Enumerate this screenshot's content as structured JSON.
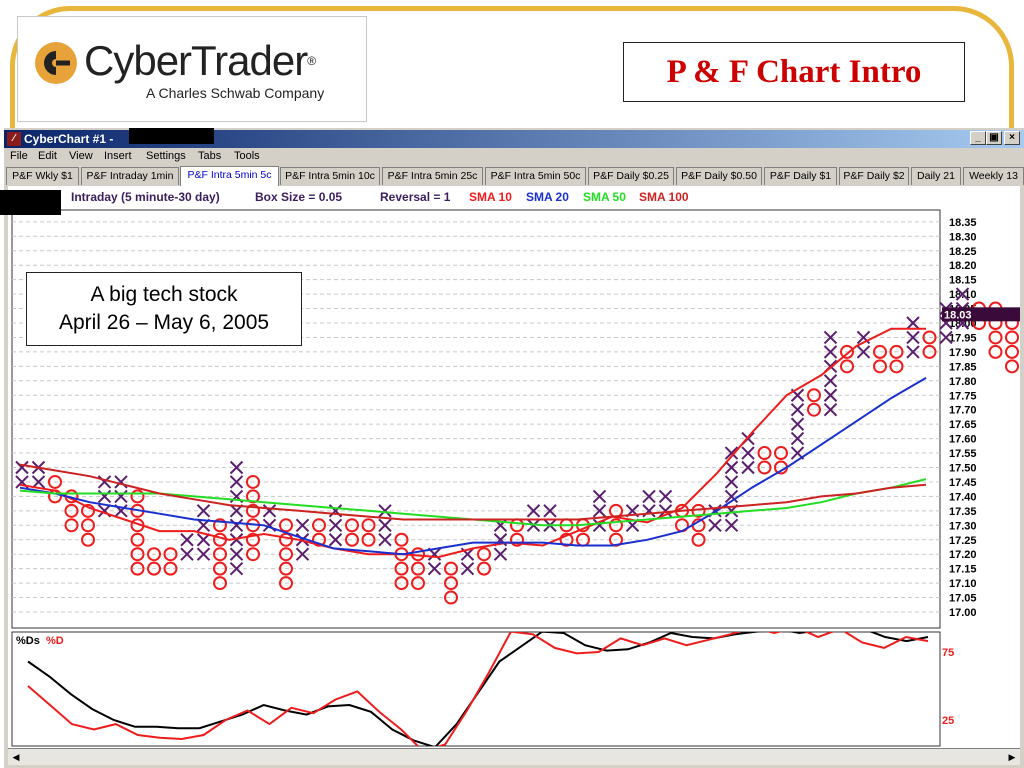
{
  "slide": {
    "title": "P & F Chart Intro",
    "logo": {
      "name": "CyberTrader",
      "trademark": "®",
      "tagline": "A Charles Schwab Company"
    }
  },
  "annotation": {
    "line1": "A big tech stock",
    "line2": "April 26 – May 6, 2005"
  },
  "window": {
    "title": "CyberChart #1 -",
    "controls": [
      "_",
      "▣",
      "×"
    ]
  },
  "menu": [
    "File",
    "Edit",
    "View",
    "Insert",
    "Settings",
    "Tabs",
    "Tools"
  ],
  "tabs": [
    {
      "label": "P&F Wkly $1",
      "active": false
    },
    {
      "label": "P&F Intraday 1min",
      "active": false
    },
    {
      "label": "P&F Intra 5min 5c",
      "active": true
    },
    {
      "label": "P&F Intra 5min 10c",
      "active": false
    },
    {
      "label": "P&F Intra 5min 25c",
      "active": false
    },
    {
      "label": "P&F Intra 5min 50c",
      "active": false
    },
    {
      "label": "P&F Daily $0.25",
      "active": false
    },
    {
      "label": "P&F Daily $0.50",
      "active": false
    },
    {
      "label": "P&F Daily $1",
      "active": false
    },
    {
      "label": "P&F Daily $2",
      "active": false
    },
    {
      "label": "Daily 21",
      "active": false
    },
    {
      "label": "Weekly 13",
      "active": false
    }
  ],
  "info": {
    "chart_desc": "Intraday (5 minute-30 day)",
    "box_size": "Box Size = 0.05",
    "reversal": "Reversal = 1",
    "sma10": "SMA 10",
    "sma20": "SMA 20",
    "sma50": "SMA 50",
    "sma100": "SMA 100"
  },
  "colors": {
    "x_marks": "#5a1e6e",
    "o_marks": "#ee1c1c",
    "sma10": "#ee1c1c",
    "sma20": "#1a2fcf",
    "sma50": "#22dd22",
    "sma100": "#cc2222",
    "stoch_ds": "#000000",
    "stoch_d": "#ee1c1c",
    "frame": "#e8b63c",
    "title": "#cc0000"
  },
  "chart_data": [
    {
      "type": "point-and-figure",
      "box_size": 0.05,
      "reversal": 1,
      "y_ticks": [
        "18.35",
        "18.30",
        "18.25",
        "18.20",
        "18.15",
        "18.10",
        "18.05",
        "18.00",
        "17.95",
        "17.90",
        "17.85",
        "17.80",
        "17.75",
        "17.70",
        "17.65",
        "17.60",
        "17.55",
        "17.50",
        "17.45",
        "17.40",
        "17.35",
        "17.30",
        "17.25",
        "17.20",
        "17.15",
        "17.10",
        "17.05",
        "17.00"
      ],
      "ylim": [
        17.0,
        18.35
      ],
      "last_price": "18.03",
      "columns": [
        {
          "k": "X",
          "lo": 17.45,
          "hi": 17.5
        },
        {
          "k": "X",
          "lo": 17.45,
          "hi": 17.5
        },
        {
          "k": "O",
          "lo": 17.4,
          "hi": 17.45
        },
        {
          "k": "O",
          "lo": 17.3,
          "hi": 17.4
        },
        {
          "k": "O",
          "lo": 17.25,
          "hi": 17.35
        },
        {
          "k": "X",
          "lo": 17.35,
          "hi": 17.45
        },
        {
          "k": "X",
          "lo": 17.35,
          "hi": 17.45
        },
        {
          "k": "O",
          "lo": 17.15,
          "hi": 17.4
        },
        {
          "k": "O",
          "lo": 17.15,
          "hi": 17.2
        },
        {
          "k": "O",
          "lo": 17.15,
          "hi": 17.2
        },
        {
          "k": "X",
          "lo": 17.2,
          "hi": 17.25
        },
        {
          "k": "X",
          "lo": 17.2,
          "hi": 17.35
        },
        {
          "k": "O",
          "lo": 17.1,
          "hi": 17.3
        },
        {
          "k": "X",
          "lo": 17.15,
          "hi": 17.5
        },
        {
          "k": "O",
          "lo": 17.2,
          "hi": 17.45
        },
        {
          "k": "X",
          "lo": 17.3,
          "hi": 17.35
        },
        {
          "k": "O",
          "lo": 17.1,
          "hi": 17.3
        },
        {
          "k": "X",
          "lo": 17.2,
          "hi": 17.3
        },
        {
          "k": "O",
          "lo": 17.25,
          "hi": 17.3
        },
        {
          "k": "X",
          "lo": 17.25,
          "hi": 17.35
        },
        {
          "k": "O",
          "lo": 17.25,
          "hi": 17.3
        },
        {
          "k": "O",
          "lo": 17.25,
          "hi": 17.3
        },
        {
          "k": "X",
          "lo": 17.25,
          "hi": 17.35
        },
        {
          "k": "O",
          "lo": 17.1,
          "hi": 17.25
        },
        {
          "k": "O",
          "lo": 17.1,
          "hi": 17.2
        },
        {
          "k": "X",
          "lo": 17.15,
          "hi": 17.2
        },
        {
          "k": "O",
          "lo": 17.05,
          "hi": 17.15
        },
        {
          "k": "X",
          "lo": 17.15,
          "hi": 17.2
        },
        {
          "k": "O",
          "lo": 17.15,
          "hi": 17.2
        },
        {
          "k": "X",
          "lo": 17.2,
          "hi": 17.3
        },
        {
          "k": "O",
          "lo": 17.25,
          "hi": 17.3
        },
        {
          "k": "X",
          "lo": 17.3,
          "hi": 17.35
        },
        {
          "k": "X",
          "lo": 17.3,
          "hi": 17.35
        },
        {
          "k": "O",
          "lo": 17.25,
          "hi": 17.3
        },
        {
          "k": "O",
          "lo": 17.25,
          "hi": 17.3
        },
        {
          "k": "X",
          "lo": 17.3,
          "hi": 17.4
        },
        {
          "k": "O",
          "lo": 17.25,
          "hi": 17.35
        },
        {
          "k": "X",
          "lo": 17.3,
          "hi": 17.35
        },
        {
          "k": "X",
          "lo": 17.35,
          "hi": 17.4
        },
        {
          "k": "X",
          "lo": 17.35,
          "hi": 17.4
        },
        {
          "k": "O",
          "lo": 17.3,
          "hi": 17.35
        },
        {
          "k": "O",
          "lo": 17.25,
          "hi": 17.35
        },
        {
          "k": "X",
          "lo": 17.3,
          "hi": 17.35
        },
        {
          "k": "X",
          "lo": 17.3,
          "hi": 17.55
        },
        {
          "k": "X",
          "lo": 17.5,
          "hi": 17.6
        },
        {
          "k": "O",
          "lo": 17.5,
          "hi": 17.55
        },
        {
          "k": "O",
          "lo": 17.5,
          "hi": 17.55
        },
        {
          "k": "X",
          "lo": 17.55,
          "hi": 17.75
        },
        {
          "k": "O",
          "lo": 17.7,
          "hi": 17.75
        },
        {
          "k": "X",
          "lo": 17.7,
          "hi": 17.95
        },
        {
          "k": "O",
          "lo": 17.85,
          "hi": 17.9
        },
        {
          "k": "X",
          "lo": 17.9,
          "hi": 17.95
        },
        {
          "k": "O",
          "lo": 17.85,
          "hi": 17.9
        },
        {
          "k": "O",
          "lo": 17.85,
          "hi": 17.9
        },
        {
          "k": "X",
          "lo": 17.9,
          "hi": 18.0
        },
        {
          "k": "O",
          "lo": 17.9,
          "hi": 17.95
        },
        {
          "k": "X",
          "lo": 17.95,
          "hi": 18.05
        },
        {
          "k": "X",
          "lo": 18.0,
          "hi": 18.1
        },
        {
          "k": "O",
          "lo": 18.0,
          "hi": 18.05
        },
        {
          "k": "O",
          "lo": 17.9,
          "hi": 18.05
        },
        {
          "k": "O",
          "lo": 17.85,
          "hi": 18.0
        },
        {
          "k": "X",
          "lo": 17.95,
          "hi": 18.05
        },
        {
          "k": "X",
          "lo": 17.95,
          "hi": 18.0
        },
        {
          "k": "O",
          "lo": 17.95,
          "hi": 18.0
        },
        {
          "k": "O",
          "lo": 17.95,
          "hi": 18.0
        },
        {
          "k": "X",
          "lo": 18.0,
          "hi": 18.2
        },
        {
          "k": "O",
          "lo": 18.1,
          "hi": 18.15
        }
      ],
      "sma": [
        {
          "name": "SMA 10",
          "values": [
            17.44,
            17.42,
            17.36,
            17.32,
            17.28,
            17.28,
            17.25,
            17.27,
            17.25,
            17.22,
            17.2,
            17.2,
            17.19,
            17.22,
            17.24,
            17.23,
            17.28,
            17.33,
            17.31,
            17.36,
            17.48,
            17.62,
            17.75,
            17.82,
            17.92,
            17.98,
            17.98
          ]
        },
        {
          "name": "SMA 20",
          "values": [
            17.43,
            17.41,
            17.38,
            17.36,
            17.34,
            17.32,
            17.31,
            17.3,
            17.26,
            17.22,
            17.21,
            17.2,
            17.22,
            17.24,
            17.24,
            17.24,
            17.23,
            17.23,
            17.25,
            17.28,
            17.35,
            17.43,
            17.5,
            17.58,
            17.66,
            17.74,
            17.81
          ]
        },
        {
          "name": "SMA 50",
          "values": [
            17.42,
            17.41,
            17.41,
            17.41,
            17.41,
            17.4,
            17.39,
            17.38,
            17.37,
            17.36,
            17.35,
            17.34,
            17.33,
            17.32,
            17.31,
            17.3,
            17.3,
            17.31,
            17.32,
            17.33,
            17.34,
            17.35,
            17.36,
            17.38,
            17.41,
            17.43,
            17.46
          ]
        },
        {
          "name": "SMA 100",
          "values": [
            17.51,
            17.49,
            17.47,
            17.44,
            17.41,
            17.39,
            17.37,
            17.36,
            17.35,
            17.34,
            17.33,
            17.32,
            17.32,
            17.32,
            17.32,
            17.32,
            17.32,
            17.33,
            17.34,
            17.35,
            17.36,
            17.37,
            17.38,
            17.4,
            17.41,
            17.43,
            17.44
          ]
        }
      ]
    },
    {
      "type": "line",
      "legend": [
        "%Ds",
        "%D"
      ],
      "y_ticks": [
        "75",
        "25"
      ],
      "ylim": [
        0,
        100
      ],
      "series": [
        {
          "name": "%Ds",
          "values": [
            68,
            57,
            44,
            33,
            25,
            20,
            20,
            19,
            19,
            24,
            29,
            36,
            32,
            29,
            35,
            36,
            31,
            18,
            10,
            5,
            22,
            45,
            68,
            79,
            90,
            89,
            80,
            76,
            77,
            82,
            89,
            86,
            85,
            88,
            90,
            92,
            89,
            91,
            92,
            92,
            86,
            83,
            86
          ]
        },
        {
          "name": "%D",
          "values": [
            50,
            36,
            22,
            18,
            22,
            14,
            12,
            11,
            14,
            25,
            32,
            22,
            34,
            30,
            40,
            46,
            31,
            18,
            2,
            7,
            32,
            60,
            90,
            88,
            78,
            74,
            75,
            85,
            80,
            85,
            80,
            84,
            88,
            93,
            89,
            93,
            86,
            92,
            82,
            78,
            86,
            83
          ]
        }
      ]
    }
  ]
}
